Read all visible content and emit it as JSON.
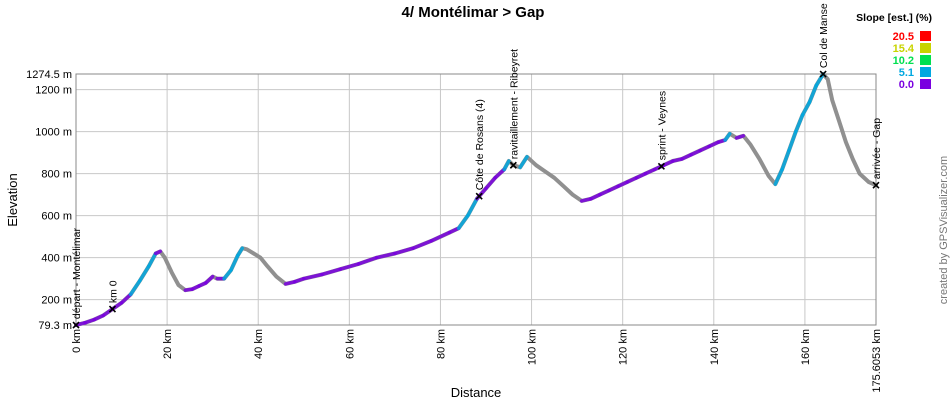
{
  "chart_data": {
    "type": "line",
    "title": "4/ Montélimar > Gap",
    "xlabel": "Distance",
    "ylabel": "Elevation",
    "xlim": [
      0,
      175.6053
    ],
    "ylim": [
      79.3,
      1274.5
    ],
    "x_ticks": [
      0,
      20,
      40,
      60,
      80,
      100,
      120,
      140,
      160,
      175.6053
    ],
    "x_tick_labels": [
      "0 km",
      "20 km",
      "40 km",
      "60 km",
      "80 km",
      "100 km",
      "120 km",
      "140 km",
      "160 km",
      "175.6053 km"
    ],
    "y_ticks": [
      79.3,
      200,
      400,
      600,
      800,
      1000,
      1200,
      1274.5
    ],
    "y_tick_labels": [
      "79.3 m",
      "200 m",
      "400 m",
      "600 m",
      "800 m",
      "1000 m",
      "1200 m",
      "1274.5 m"
    ],
    "grid": true,
    "series": [
      {
        "x": [
          0,
          2,
          4,
          6,
          8,
          10,
          12,
          14,
          16,
          17.5,
          18.5,
          19.5,
          21,
          22.5,
          24,
          25.5,
          27,
          28.5,
          30,
          31,
          32.5,
          34,
          35.5,
          36.5,
          37.5,
          39,
          40.5,
          42,
          44,
          46,
          48,
          50,
          54,
          58,
          62,
          66,
          70,
          74,
          78,
          82,
          84,
          86,
          88,
          90,
          92,
          94,
          95,
          96,
          97.5,
          99,
          101,
          103,
          105,
          107,
          109,
          111,
          113,
          115,
          117,
          119,
          121,
          123,
          125,
          127,
          129,
          131,
          133,
          135,
          137,
          139,
          141,
          142.5,
          143.5,
          145,
          146.5,
          148,
          150,
          152,
          153.5,
          155,
          156.5,
          158,
          159.5,
          161,
          162.5,
          164,
          165,
          166,
          167.5,
          169,
          170.5,
          172,
          174,
          175.6
        ],
        "y": [
          79,
          90,
          105,
          125,
          155,
          185,
          225,
          290,
          360,
          420,
          430,
          400,
          330,
          270,
          245,
          250,
          265,
          280,
          310,
          300,
          300,
          340,
          410,
          445,
          440,
          420,
          400,
          360,
          310,
          275,
          285,
          300,
          320,
          345,
          370,
          400,
          420,
          445,
          480,
          520,
          540,
          600,
          680,
          730,
          780,
          820,
          860,
          840,
          830,
          880,
          840,
          810,
          780,
          740,
          700,
          670,
          680,
          700,
          720,
          740,
          760,
          780,
          800,
          820,
          840,
          860,
          870,
          890,
          910,
          930,
          950,
          960,
          990,
          970,
          980,
          940,
          870,
          790,
          750,
          820,
          910,
          1000,
          1080,
          1140,
          1220,
          1274,
          1250,
          1150,
          1050,
          950,
          870,
          800,
          760,
          745
        ]
      }
    ],
    "waypoints": [
      {
        "km": 0,
        "label": "départ - Montélimar"
      },
      {
        "km": 8,
        "label": "km 0"
      },
      {
        "km": 88.5,
        "label": "Côte de Rosans (4)"
      },
      {
        "km": 96,
        "label": "ravitaillement - Ribeyret"
      },
      {
        "km": 128.5,
        "label": "sprint - Veynes"
      },
      {
        "km": 164,
        "label": "Col de Manse"
      },
      {
        "km": 175.6,
        "label": "arrivée - Gap"
      }
    ],
    "legend": {
      "title": "Slope [est.] (%)",
      "placement": "top-right",
      "entries": [
        {
          "label": "20.5",
          "color": "#ff0000"
        },
        {
          "label": "15.4",
          "color": "#c8d400"
        },
        {
          "label": "10.2",
          "color": "#00e050"
        },
        {
          "label": "5.1",
          "color": "#00a8e0"
        },
        {
          "label": "0.0",
          "color": "#7a00e0"
        }
      ]
    },
    "line_color": "#909090"
  },
  "credit": "created by GPSVisualizer.com"
}
